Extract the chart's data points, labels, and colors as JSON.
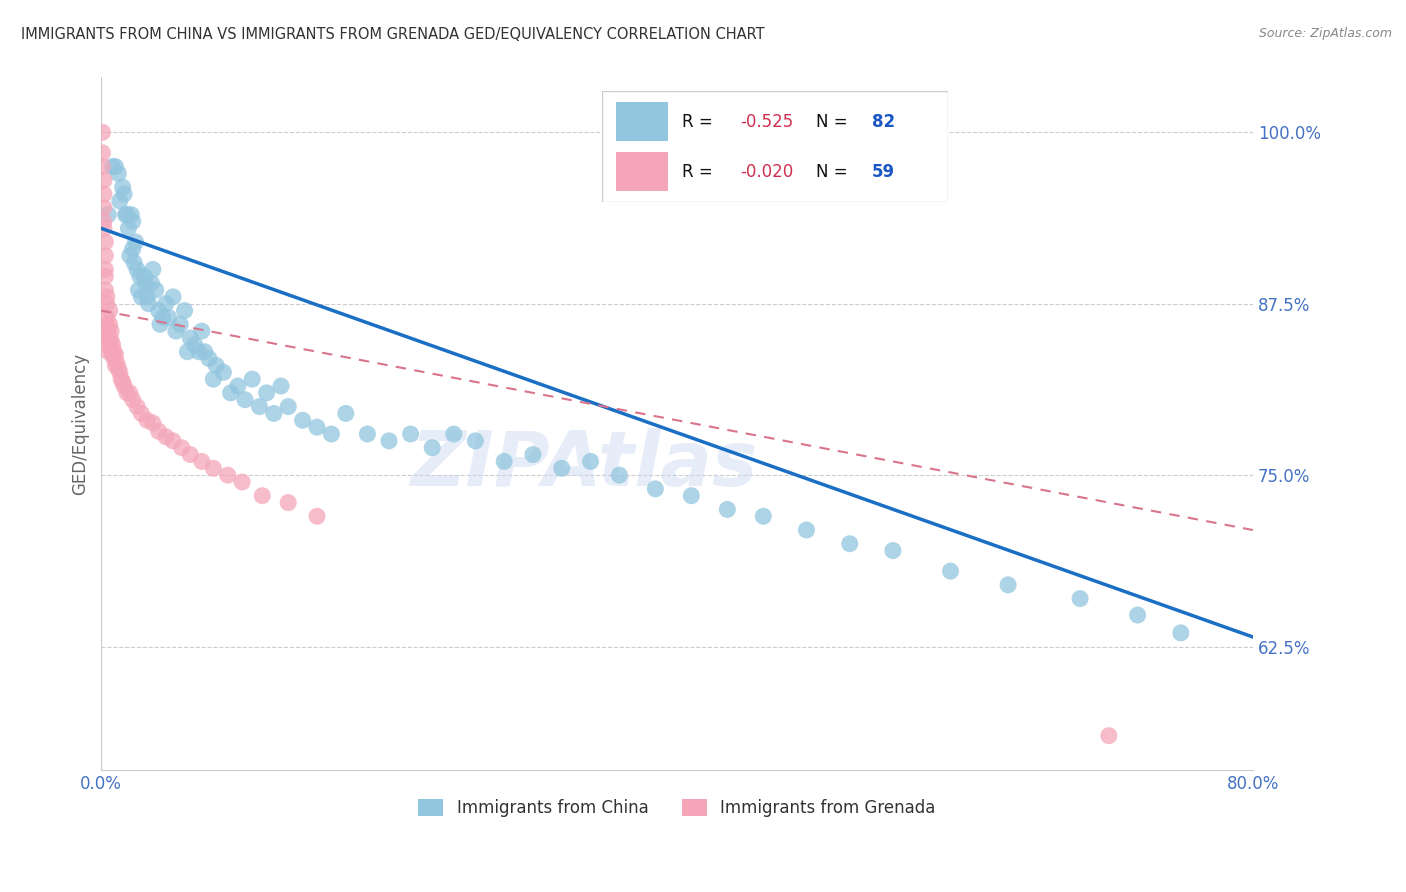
{
  "title": "IMMIGRANTS FROM CHINA VS IMMIGRANTS FROM GRENADA GED/EQUIVALENCY CORRELATION CHART",
  "source": "Source: ZipAtlas.com",
  "ylabel": "GED/Equivalency",
  "ytick_labels": [
    "62.5%",
    "75.0%",
    "87.5%",
    "100.0%"
  ],
  "ytick_values": [
    0.625,
    0.75,
    0.875,
    1.0
  ],
  "xmin": 0.0,
  "xmax": 0.8,
  "ymin": 0.535,
  "ymax": 1.04,
  "china_color": "#92c5de",
  "grenada_color": "#f4a6b8",
  "china_R": -0.525,
  "china_N": 82,
  "grenada_R": -0.02,
  "grenada_N": 59,
  "watermark": "ZIPAtlas",
  "china_scatter_x": [
    0.005,
    0.008,
    0.01,
    0.012,
    0.013,
    0.015,
    0.016,
    0.017,
    0.018,
    0.019,
    0.02,
    0.021,
    0.022,
    0.022,
    0.023,
    0.024,
    0.025,
    0.026,
    0.027,
    0.028,
    0.03,
    0.031,
    0.032,
    0.033,
    0.035,
    0.036,
    0.038,
    0.04,
    0.041,
    0.043,
    0.045,
    0.047,
    0.05,
    0.052,
    0.055,
    0.058,
    0.06,
    0.062,
    0.065,
    0.068,
    0.07,
    0.072,
    0.075,
    0.078,
    0.08,
    0.085,
    0.09,
    0.095,
    0.1,
    0.105,
    0.11,
    0.115,
    0.12,
    0.125,
    0.13,
    0.14,
    0.15,
    0.16,
    0.17,
    0.185,
    0.2,
    0.215,
    0.23,
    0.245,
    0.26,
    0.28,
    0.3,
    0.32,
    0.34,
    0.36,
    0.385,
    0.41,
    0.435,
    0.46,
    0.49,
    0.52,
    0.55,
    0.59,
    0.63,
    0.68,
    0.72,
    0.75
  ],
  "china_scatter_y": [
    0.94,
    0.975,
    0.975,
    0.97,
    0.95,
    0.96,
    0.955,
    0.94,
    0.94,
    0.93,
    0.91,
    0.94,
    0.935,
    0.915,
    0.905,
    0.92,
    0.9,
    0.885,
    0.895,
    0.88,
    0.895,
    0.89,
    0.88,
    0.875,
    0.89,
    0.9,
    0.885,
    0.87,
    0.86,
    0.865,
    0.875,
    0.865,
    0.88,
    0.855,
    0.86,
    0.87,
    0.84,
    0.85,
    0.845,
    0.84,
    0.855,
    0.84,
    0.835,
    0.82,
    0.83,
    0.825,
    0.81,
    0.815,
    0.805,
    0.82,
    0.8,
    0.81,
    0.795,
    0.815,
    0.8,
    0.79,
    0.785,
    0.78,
    0.795,
    0.78,
    0.775,
    0.78,
    0.77,
    0.78,
    0.775,
    0.76,
    0.765,
    0.755,
    0.76,
    0.75,
    0.74,
    0.735,
    0.725,
    0.72,
    0.71,
    0.7,
    0.695,
    0.68,
    0.67,
    0.66,
    0.648,
    0.635
  ],
  "grenada_scatter_x": [
    0.001,
    0.001,
    0.001,
    0.002,
    0.002,
    0.002,
    0.002,
    0.002,
    0.003,
    0.003,
    0.003,
    0.003,
    0.003,
    0.004,
    0.004,
    0.004,
    0.004,
    0.005,
    0.005,
    0.005,
    0.005,
    0.006,
    0.006,
    0.006,
    0.007,
    0.007,
    0.007,
    0.008,
    0.008,
    0.009,
    0.009,
    0.01,
    0.01,
    0.011,
    0.012,
    0.013,
    0.014,
    0.015,
    0.016,
    0.018,
    0.02,
    0.022,
    0.025,
    0.028,
    0.032,
    0.036,
    0.04,
    0.045,
    0.05,
    0.056,
    0.062,
    0.07,
    0.078,
    0.088,
    0.098,
    0.112,
    0.13,
    0.15,
    0.7
  ],
  "grenada_scatter_y": [
    1.0,
    0.985,
    0.975,
    0.965,
    0.955,
    0.945,
    0.935,
    0.93,
    0.92,
    0.91,
    0.9,
    0.895,
    0.885,
    0.88,
    0.875,
    0.865,
    0.86,
    0.855,
    0.85,
    0.845,
    0.84,
    0.87,
    0.86,
    0.85,
    0.855,
    0.848,
    0.842,
    0.845,
    0.838,
    0.835,
    0.84,
    0.838,
    0.83,
    0.832,
    0.828,
    0.825,
    0.82,
    0.818,
    0.815,
    0.81,
    0.81,
    0.805,
    0.8,
    0.795,
    0.79,
    0.788,
    0.782,
    0.778,
    0.775,
    0.77,
    0.765,
    0.76,
    0.755,
    0.75,
    0.745,
    0.735,
    0.73,
    0.72,
    0.56
  ],
  "china_line_x0": 0.0,
  "china_line_x1": 0.8,
  "china_line_y0": 0.93,
  "china_line_y1": 0.632,
  "grenada_line_x0": 0.0,
  "grenada_line_x1": 0.8,
  "grenada_line_y0": 0.87,
  "grenada_line_y1": 0.71,
  "grid_color": "#cccccc",
  "title_color": "#333333",
  "axis_tick_color": "#4472c4",
  "right_ytick_color": "#4472c4"
}
